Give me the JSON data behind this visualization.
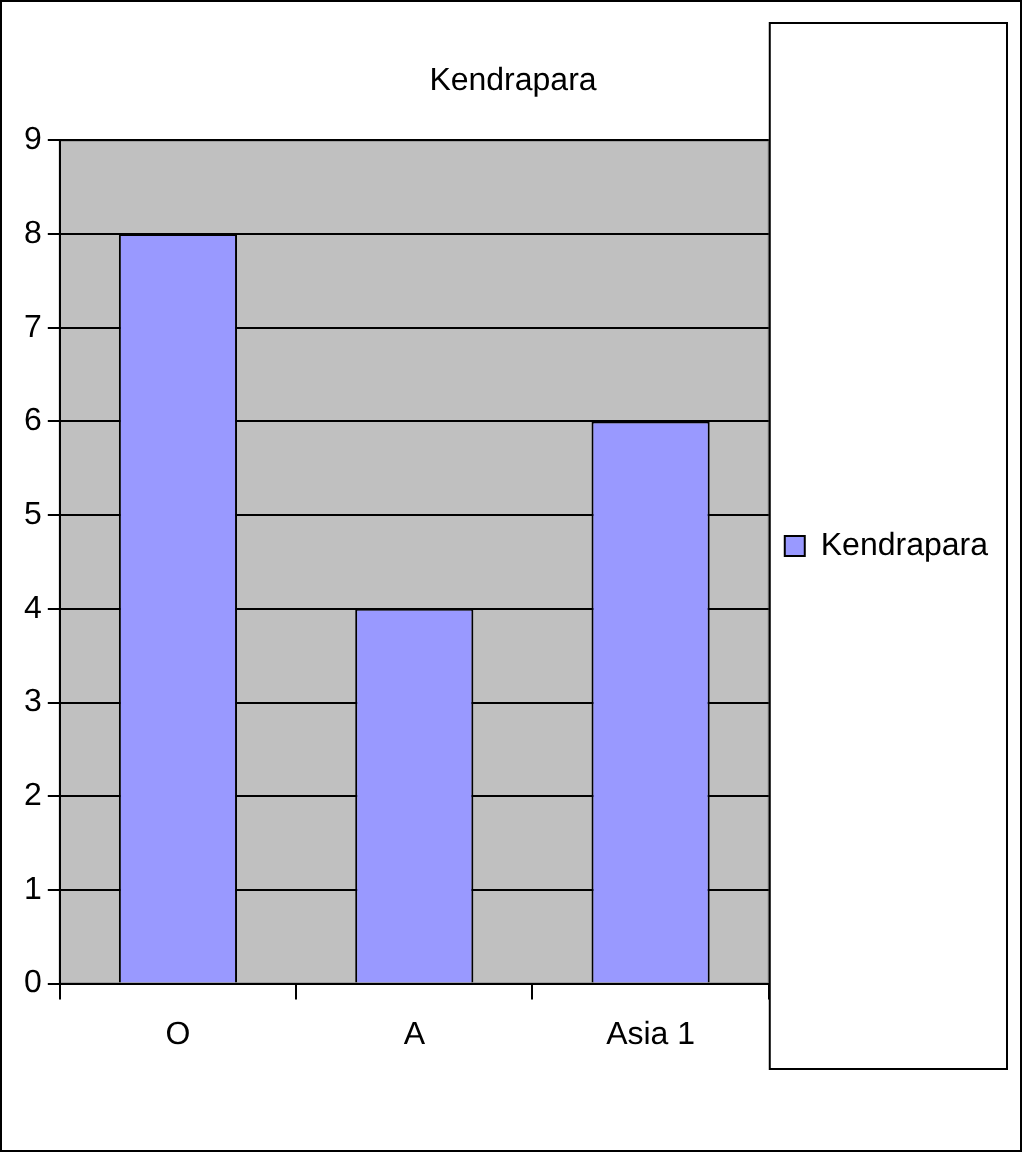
{
  "chart_data": {
    "type": "bar",
    "title": "Kendrapara",
    "categories": [
      "O",
      "A",
      "Asia 1"
    ],
    "series": [
      {
        "name": "Kendrapara",
        "color": "#9999ff",
        "values": [
          8,
          4,
          6
        ]
      }
    ],
    "ylim": [
      0,
      9
    ],
    "yticks": [
      0,
      1,
      2,
      3,
      4,
      5,
      6,
      7,
      8,
      9
    ],
    "grid": "y",
    "legend": "right"
  }
}
